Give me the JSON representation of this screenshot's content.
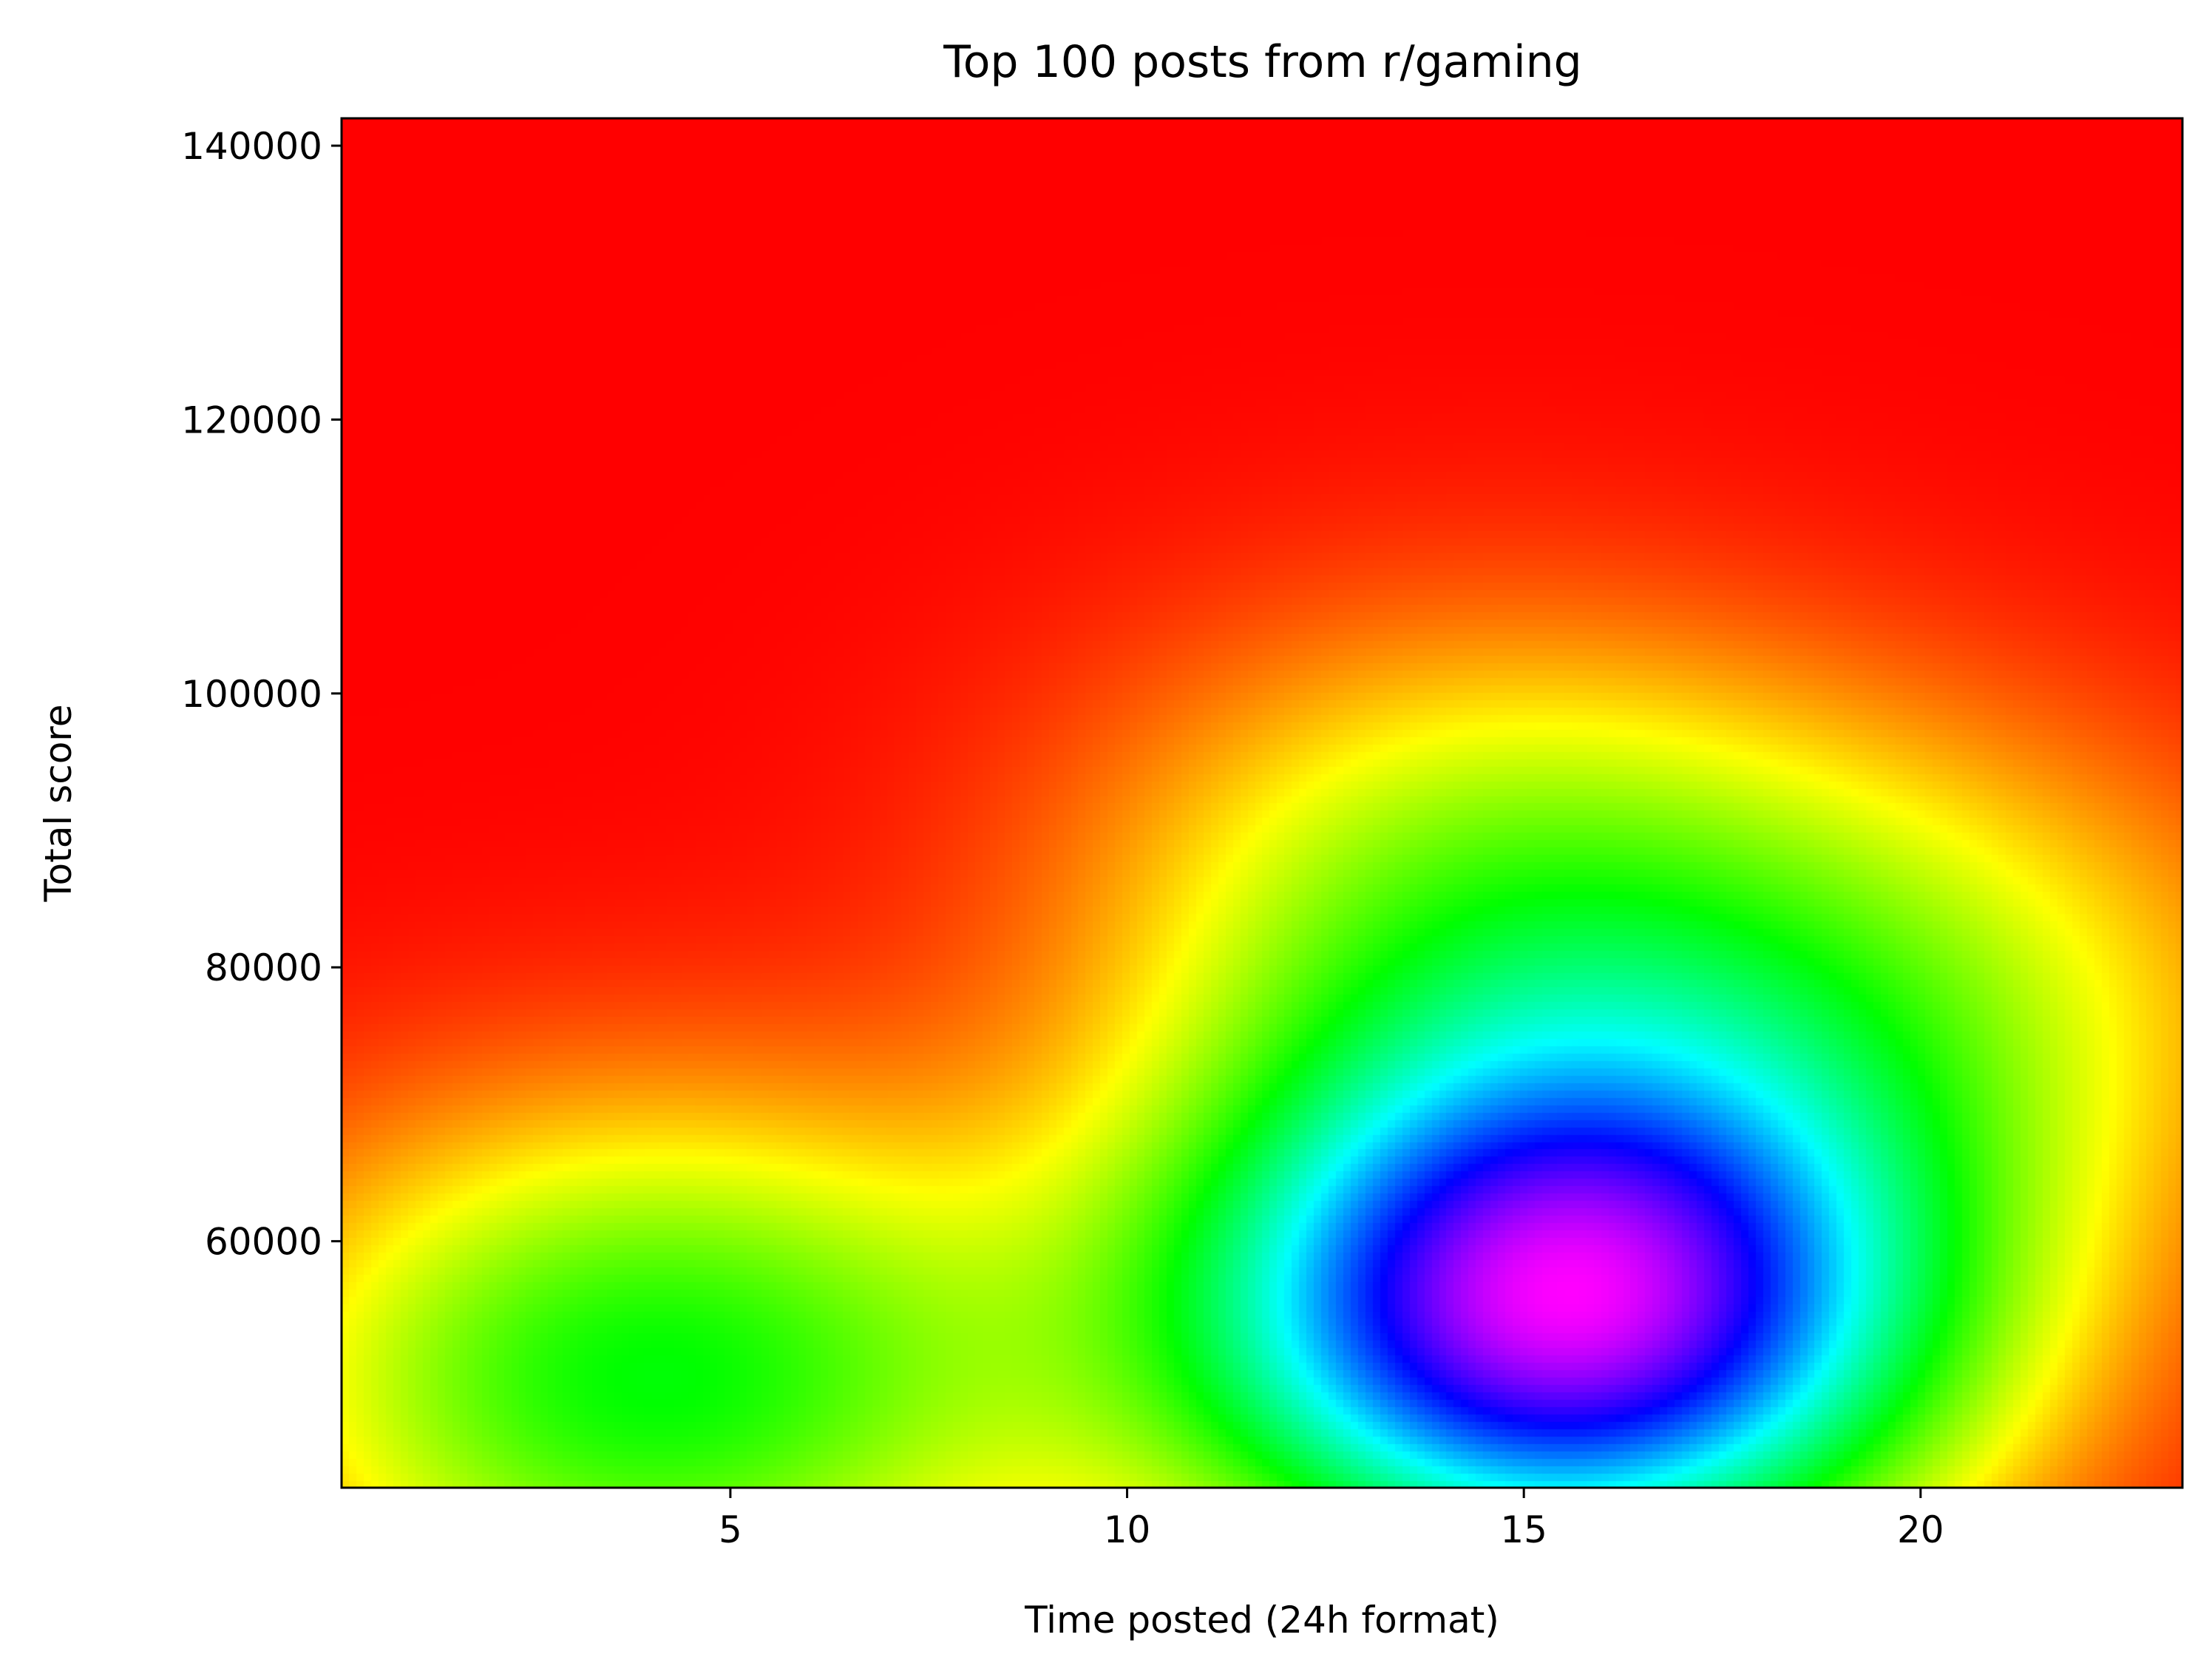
{
  "chart_data": {
    "type": "heatmap",
    "title": "Top 100 posts from r/gaming",
    "xlabel": "Time posted (24h format)",
    "ylabel": "Total score",
    "xlim": [
      0.1,
      23.3
    ],
    "ylim": [
      42000,
      142000
    ],
    "x_ticks": [
      5,
      10,
      15,
      20
    ],
    "x_tick_labels": [
      "5",
      "10",
      "15",
      "20"
    ],
    "y_ticks": [
      60000,
      80000,
      100000,
      120000,
      140000
    ],
    "y_tick_labels": [
      "60000",
      "80000",
      "100000",
      "120000",
      "140000"
    ],
    "colormap": "gist_rainbow_r",
    "colormap_stops": [
      "#ff0000",
      "#ffff00",
      "#00ff00",
      "#00ffff",
      "#0000ff",
      "#ff00ff"
    ],
    "grid": false,
    "legend": "none",
    "density_peaks": [
      {
        "x": 15.5,
        "y": 55000,
        "weight": 1.0
      },
      {
        "x": 4.0,
        "y": 50000,
        "weight": 0.42
      },
      {
        "x": 14.5,
        "y": 85000,
        "weight": 0.28
      },
      {
        "x": 20.0,
        "y": 78000,
        "weight": 0.2
      }
    ]
  }
}
